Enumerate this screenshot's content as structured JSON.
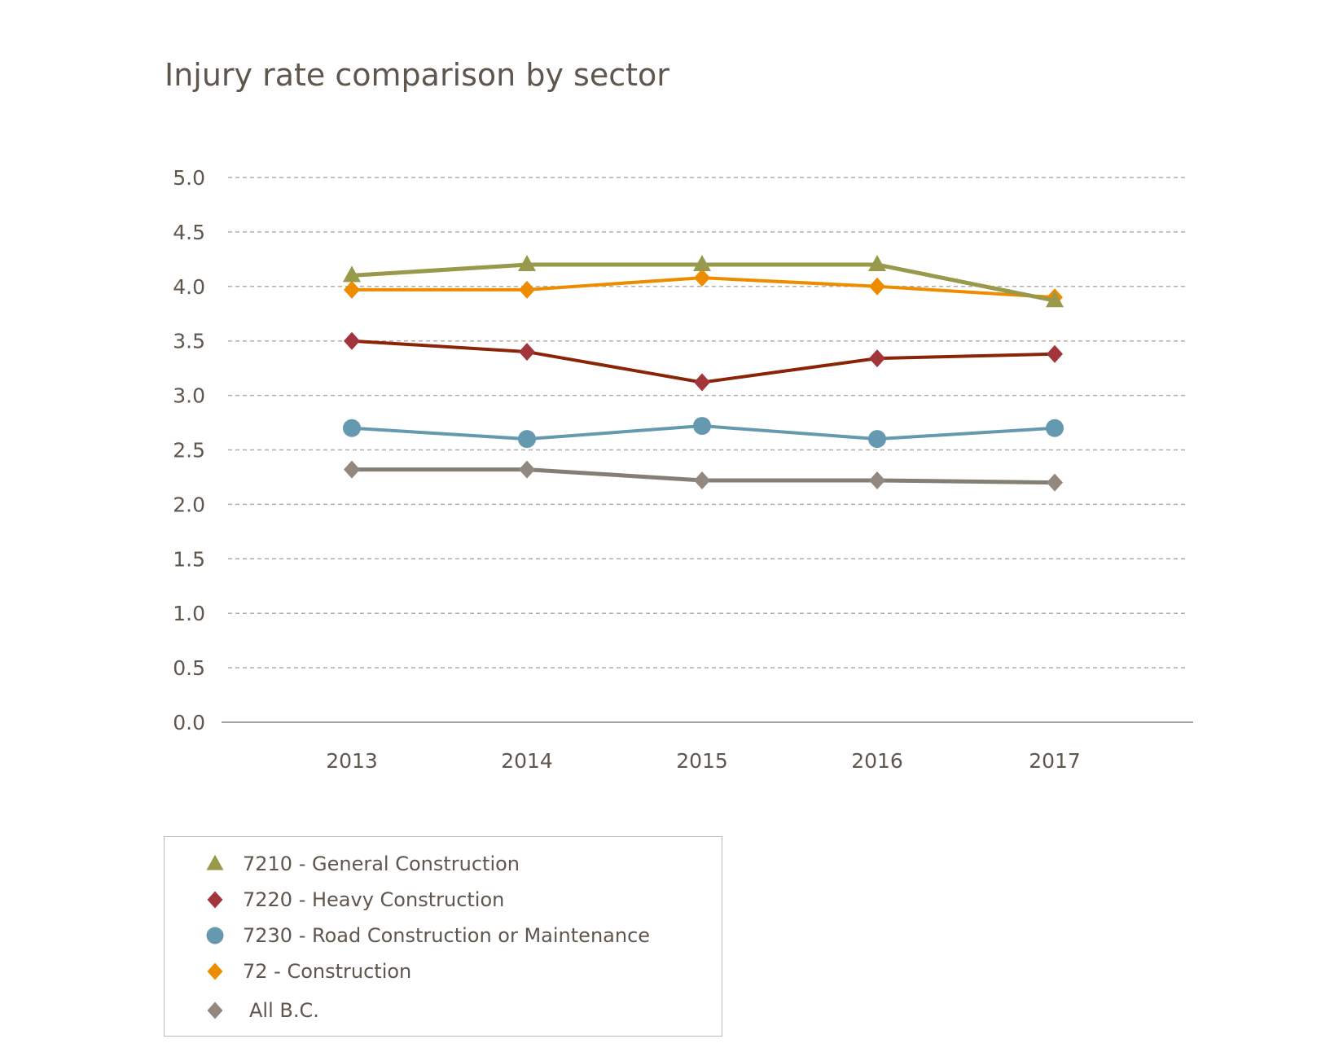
{
  "chart_data": {
    "type": "line",
    "title": "Injury rate comparison by sector",
    "categories": [
      "2013",
      "2014",
      "2015",
      "2016",
      "2017"
    ],
    "ylim": [
      0,
      5
    ],
    "yticks": [
      "0.0",
      "0.5",
      "1.0",
      "1.5",
      "2.0",
      "2.5",
      "3.0",
      "3.5",
      "4.0",
      "4.5",
      "5.0"
    ],
    "grid": true,
    "legend_position": "bottom-left",
    "series": [
      {
        "name": "7210 - General Construction",
        "marker": "triangle",
        "color": "#98994a",
        "values": [
          4.1,
          4.2,
          4.2,
          4.2,
          3.87
        ]
      },
      {
        "name": "7220 - Heavy Construction",
        "marker": "diamond",
        "color": "#a2343b",
        "line_color": "#8b2306",
        "values": [
          3.5,
          3.4,
          3.12,
          3.34,
          3.38
        ]
      },
      {
        "name": "7230 - Road Construction or Maintenance",
        "marker": "circle",
        "color": "#6499af",
        "values": [
          2.7,
          2.6,
          2.72,
          2.6,
          2.7
        ]
      },
      {
        "name": "72 - Construction",
        "marker": "diamond",
        "color": "#ee8c00",
        "values": [
          3.97,
          3.97,
          4.08,
          4.0,
          3.9
        ]
      },
      {
        "name": "All B.C.",
        "marker": "diamond",
        "color": "#928880",
        "line_color": "#857e75",
        "values": [
          2.32,
          2.32,
          2.22,
          2.22,
          2.2
        ]
      }
    ]
  }
}
